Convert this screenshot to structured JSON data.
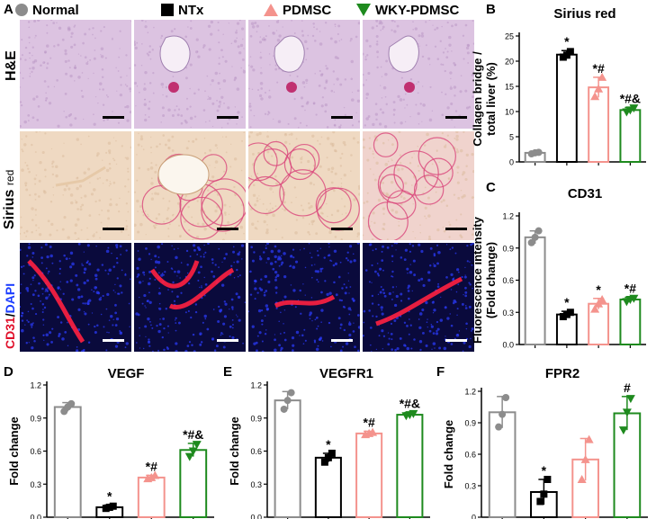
{
  "panel_letters": {
    "a": "A",
    "b": "B",
    "c": "C",
    "d": "D",
    "e": "E",
    "f": "F"
  },
  "legend": [
    {
      "label": "Normal",
      "color": "#8c8c8c",
      "marker": "circle"
    },
    {
      "label": "NTx",
      "color": "#000000",
      "marker": "square"
    },
    {
      "label": "PDMSC",
      "color": "#f4938d",
      "marker": "triangle-up"
    },
    {
      "label": "WKY-PDMSC",
      "color": "#1e8a1e",
      "marker": "triangle-down"
    }
  ],
  "row_labels": {
    "he": "H&E",
    "sirius_main": "Sirius",
    "sirius_sub": "red",
    "cd31": "CD31",
    "slash": "/",
    "dapi": "DAPI"
  },
  "colors": {
    "normal": "#8c8c8c",
    "ntx": "#000000",
    "pdmsc": "#f4938d",
    "wky": "#1e8a1e",
    "he_bg": "#dcc3e1",
    "sirius_bg": "#efd9c2",
    "fluor_bg": "#0a0a3c",
    "cd31_red": "#ff2040",
    "dapi_blue": "#2b3cff"
  },
  "chart_data": [
    {
      "id": "B",
      "type": "bar",
      "title": "Sirius red",
      "ylabel": "Collagen bridge / total liver (%)",
      "ylabel_lines": [
        "Collagen bridge /",
        "total liver (%)"
      ],
      "categories": [
        "Normal",
        "NTx",
        "PDMSC",
        "WKY-PDMSC"
      ],
      "values": [
        1.8,
        21.3,
        14.8,
        10.3
      ],
      "errors": [
        0.2,
        0.8,
        2.0,
        0.5
      ],
      "points": [
        [
          1.6,
          1.8,
          1.9
        ],
        [
          20.8,
          21.2,
          21.9
        ],
        [
          13.0,
          14.5,
          16.8
        ],
        [
          9.9,
          10.3,
          10.7
        ]
      ],
      "annotations": [
        "",
        "*",
        "*#",
        "*#&"
      ],
      "ylim": [
        0,
        25
      ],
      "yticks": [
        0,
        5,
        10,
        15,
        20,
        25
      ],
      "ytick_labels": [
        "0",
        "5",
        "10",
        "15",
        "20",
        "25"
      ]
    },
    {
      "id": "C",
      "type": "bar",
      "title": "CD31",
      "ylabel": "Fluorescence intensity (Fold change)",
      "ylabel_lines": [
        "Fluorescence intensity",
        "(Fold change)"
      ],
      "categories": [
        "Normal",
        "NTx",
        "PDMSC",
        "WKY-PDMSC"
      ],
      "values": [
        1.0,
        0.28,
        0.38,
        0.42
      ],
      "errors": [
        0.06,
        0.03,
        0.05,
        0.02
      ],
      "points": [
        [
          0.95,
          1.0,
          1.06
        ],
        [
          0.26,
          0.28,
          0.3
        ],
        [
          0.33,
          0.38,
          0.42
        ],
        [
          0.4,
          0.42,
          0.43
        ]
      ],
      "annotations": [
        "",
        "*",
        "*",
        "*#"
      ],
      "ylim": [
        0,
        1.2
      ],
      "yticks": [
        0,
        0.3,
        0.6,
        0.9,
        1.2
      ],
      "ytick_labels": [
        "0.0",
        "0.3",
        "0.6",
        "0.9",
        "1.2"
      ]
    },
    {
      "id": "D",
      "type": "bar",
      "title": "VEGF",
      "ylabel": "Fold change",
      "ylabel_lines": [
        "Fold change"
      ],
      "categories": [
        "Normal",
        "NTx",
        "PDMSC",
        "WKY-PDMSC"
      ],
      "values": [
        1.0,
        0.09,
        0.36,
        0.61
      ],
      "errors": [
        0.04,
        0.02,
        0.02,
        0.06
      ],
      "points": [
        [
          0.96,
          1.0,
          1.03
        ],
        [
          0.08,
          0.09,
          0.1
        ],
        [
          0.35,
          0.36,
          0.38
        ],
        [
          0.55,
          0.6,
          0.66
        ]
      ],
      "annotations": [
        "",
        "*",
        "*#",
        "*#&"
      ],
      "ylim": [
        0,
        1.2
      ],
      "yticks": [
        0,
        0.3,
        0.6,
        0.9,
        1.2
      ],
      "ytick_labels": [
        "0.0",
        "0.3",
        "0.6",
        "0.9",
        "1.2"
      ]
    },
    {
      "id": "E",
      "type": "bar",
      "title": "VEGFR1",
      "ylabel": "Fold change",
      "ylabel_lines": [
        "Fold change"
      ],
      "categories": [
        "Normal",
        "NTx",
        "PDMSC",
        "WKY-PDMSC"
      ],
      "values": [
        1.06,
        0.54,
        0.76,
        0.93
      ],
      "errors": [
        0.08,
        0.04,
        0.02,
        0.02
      ],
      "points": [
        [
          0.98,
          1.06,
          1.13
        ],
        [
          0.5,
          0.54,
          0.58
        ],
        [
          0.75,
          0.76,
          0.77
        ],
        [
          0.92,
          0.93,
          0.94
        ]
      ],
      "annotations": [
        "",
        "*",
        "*#",
        "*#&"
      ],
      "ylim": [
        0,
        1.2
      ],
      "yticks": [
        0,
        0.3,
        0.6,
        0.9,
        1.2
      ],
      "ytick_labels": [
        "0.0",
        "0.3",
        "0.6",
        "0.9",
        "1.2"
      ]
    },
    {
      "id": "F",
      "type": "bar",
      "title": "FPR2",
      "ylabel": "Fold change",
      "ylabel_lines": [
        "Fold change"
      ],
      "categories": [
        "Normal",
        "NTx",
        "PDMSC",
        "WKY-PDMSC"
      ],
      "values": [
        1.0,
        0.24,
        0.55,
        0.99
      ],
      "errors": [
        0.15,
        0.12,
        0.2,
        0.16
      ],
      "points": [
        [
          0.86,
          0.98,
          1.14
        ],
        [
          0.15,
          0.22,
          0.36
        ],
        [
          0.36,
          0.55,
          0.74
        ],
        [
          0.83,
          1.0,
          1.13
        ]
      ],
      "annotations": [
        "",
        "*",
        "",
        "#"
      ],
      "ylim": [
        0,
        1.2
      ],
      "yticks": [
        0,
        0.3,
        0.6,
        0.9,
        1.2
      ],
      "ytick_labels": [
        "0",
        "0.3",
        "0.6",
        "0.9",
        "1.2"
      ]
    }
  ]
}
